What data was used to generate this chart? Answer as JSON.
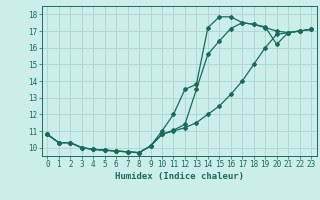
{
  "xlabel": "Humidex (Indice chaleur)",
  "bg_color": "#cceee8",
  "grid_color": "#aad4ce",
  "line_color": "#1a6b5a",
  "xlim": [
    -0.5,
    23.5
  ],
  "ylim": [
    9.5,
    18.5
  ],
  "xticks": [
    0,
    1,
    2,
    3,
    4,
    5,
    6,
    7,
    8,
    9,
    10,
    11,
    12,
    13,
    14,
    15,
    16,
    17,
    18,
    19,
    20,
    21,
    22,
    23
  ],
  "yticks": [
    10,
    11,
    12,
    13,
    14,
    15,
    16,
    17,
    18
  ],
  "line1_x": [
    0,
    1,
    2,
    3,
    4,
    5,
    6,
    7,
    8,
    9,
    10,
    11,
    12,
    13,
    14,
    15,
    16,
    17,
    18,
    19,
    20,
    21,
    22,
    23
  ],
  "line1_y": [
    10.8,
    10.3,
    10.3,
    10.0,
    9.9,
    9.85,
    9.8,
    9.75,
    9.7,
    10.1,
    11.0,
    12.0,
    13.5,
    13.8,
    17.2,
    17.85,
    17.85,
    17.5,
    17.4,
    17.2,
    17.0,
    16.9,
    17.0,
    17.1
  ],
  "line2_x": [
    0,
    1,
    2,
    3,
    4,
    5,
    6,
    7,
    8,
    9,
    10,
    11,
    12,
    13,
    14,
    15,
    16,
    17,
    18,
    19,
    20,
    21,
    22,
    23
  ],
  "line2_y": [
    10.8,
    10.3,
    10.3,
    10.0,
    9.9,
    9.85,
    9.8,
    9.75,
    9.7,
    10.1,
    10.8,
    11.05,
    11.4,
    13.5,
    15.6,
    16.4,
    17.15,
    17.5,
    17.4,
    17.25,
    16.2,
    16.9,
    17.0,
    17.1
  ],
  "line3_x": [
    0,
    1,
    2,
    3,
    4,
    5,
    6,
    7,
    8,
    9,
    10,
    11,
    12,
    13,
    14,
    15,
    16,
    17,
    18,
    19,
    20,
    21,
    22,
    23
  ],
  "line3_y": [
    10.8,
    10.3,
    10.3,
    10.0,
    9.9,
    9.85,
    9.8,
    9.75,
    9.7,
    10.1,
    10.8,
    11.0,
    11.2,
    11.5,
    12.0,
    12.5,
    13.2,
    14.0,
    15.0,
    16.0,
    16.8,
    16.9,
    17.0,
    17.1
  ]
}
